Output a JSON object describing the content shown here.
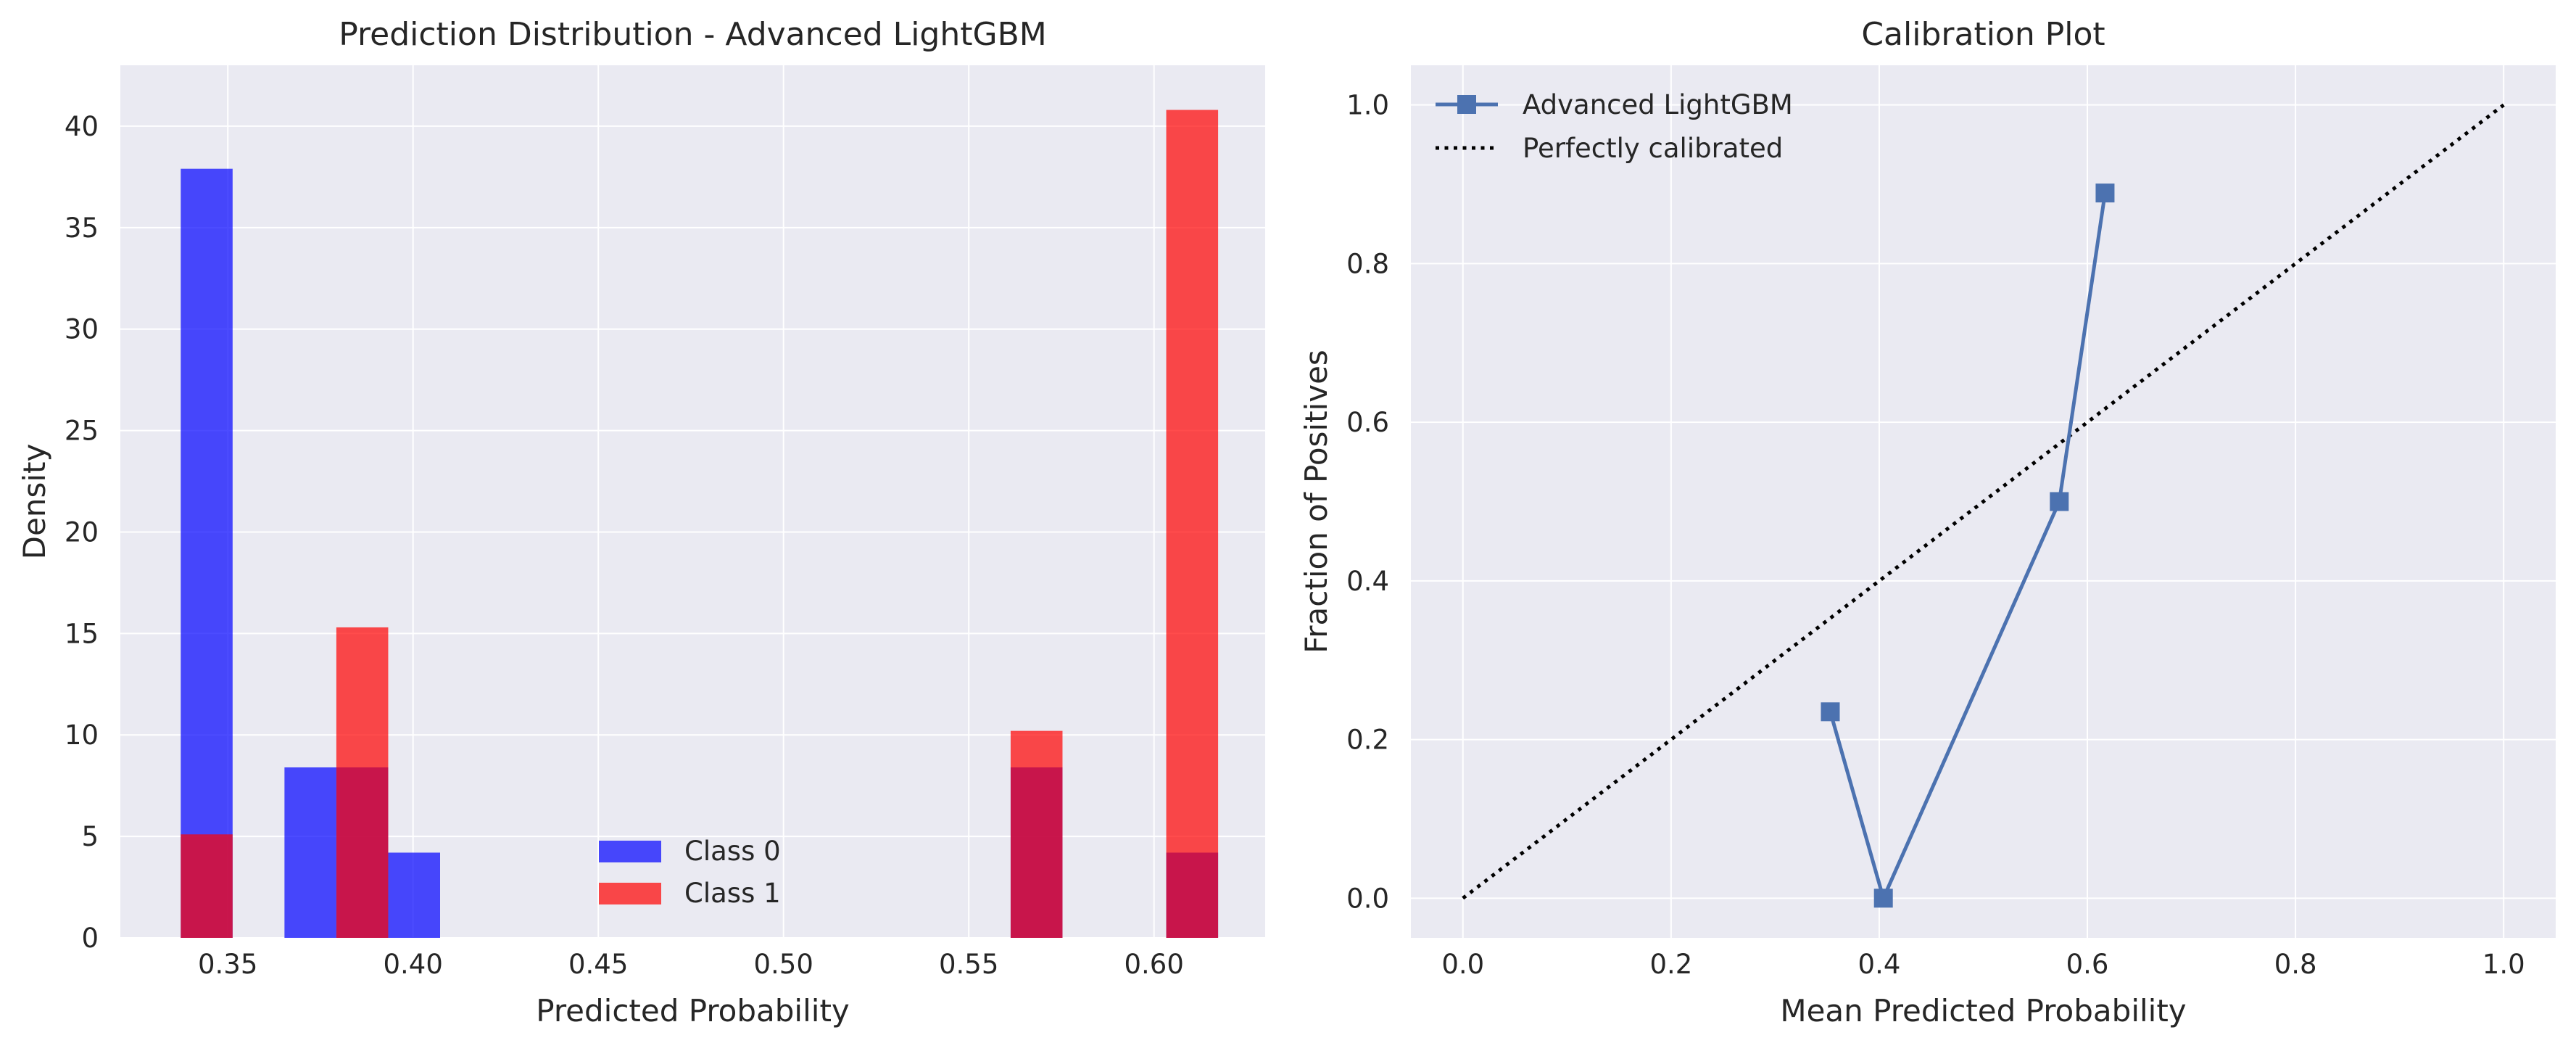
{
  "figure_background": "#ffffff",
  "axes_background": "#eaeaf2",
  "grid_color": "#ffffff",
  "chart_data": [
    {
      "type": "bar",
      "subtype": "histogram-overlay",
      "title": "Prediction Distribution - Advanced LightGBM",
      "xlabel": "Predicted Probability",
      "ylabel": "Density",
      "xlim": [
        0.321,
        0.63
      ],
      "ylim": [
        0,
        43
      ],
      "xticks": [
        "0.35",
        "0.40",
        "0.45",
        "0.50",
        "0.55",
        "0.60"
      ],
      "yticks": [
        "0",
        "5",
        "10",
        "15",
        "20",
        "25",
        "30",
        "35",
        "40"
      ],
      "grid": true,
      "legend_position": "lower-center",
      "bin_edges": [
        0.3373,
        0.3513,
        0.3653,
        0.3793,
        0.3933,
        0.4073,
        0.4213,
        0.4353,
        0.4493,
        0.4633,
        0.4773,
        0.4913,
        0.5053,
        0.5193,
        0.5333,
        0.5473,
        0.5613,
        0.5753,
        0.5893,
        0.6033,
        0.6173
      ],
      "series": [
        {
          "name": "Class 0",
          "color": "#0000ff",
          "alpha": 0.7,
          "values": [
            37.9,
            0,
            8.4,
            8.4,
            4.2,
            0,
            0,
            0,
            0,
            0,
            0,
            0,
            0,
            0,
            0,
            0,
            8.4,
            0,
            0,
            4.2
          ]
        },
        {
          "name": "Class 1",
          "color": "#ff0000",
          "alpha": 0.7,
          "values": [
            5.1,
            0,
            0,
            15.3,
            0,
            0,
            0,
            0,
            0,
            0,
            0,
            0,
            0,
            0,
            0,
            0,
            10.2,
            0,
            0,
            40.8
          ]
        }
      ]
    },
    {
      "type": "line",
      "title": "Calibration Plot",
      "xlabel": "Mean Predicted Probability",
      "ylabel": "Fraction of Positives",
      "xlim": [
        -0.05,
        1.05
      ],
      "ylim": [
        -0.05,
        1.05
      ],
      "xticks": [
        "0.0",
        "0.2",
        "0.4",
        "0.6",
        "0.8",
        "1.0"
      ],
      "yticks": [
        "0.0",
        "0.2",
        "0.4",
        "0.6",
        "0.8",
        "1.0"
      ],
      "grid": true,
      "legend_position": "upper-left",
      "series": [
        {
          "name": "Advanced LightGBM",
          "color": "#4c72b0",
          "marker": "square",
          "linestyle": "solid",
          "x": [
            0.353,
            0.404,
            0.573,
            0.617
          ],
          "y": [
            0.235,
            0.0,
            0.5,
            0.889
          ]
        },
        {
          "name": "Perfectly calibrated",
          "color": "#000000",
          "marker": "none",
          "linestyle": "dotted",
          "x": [
            0,
            1
          ],
          "y": [
            0,
            1
          ]
        }
      ]
    }
  ]
}
